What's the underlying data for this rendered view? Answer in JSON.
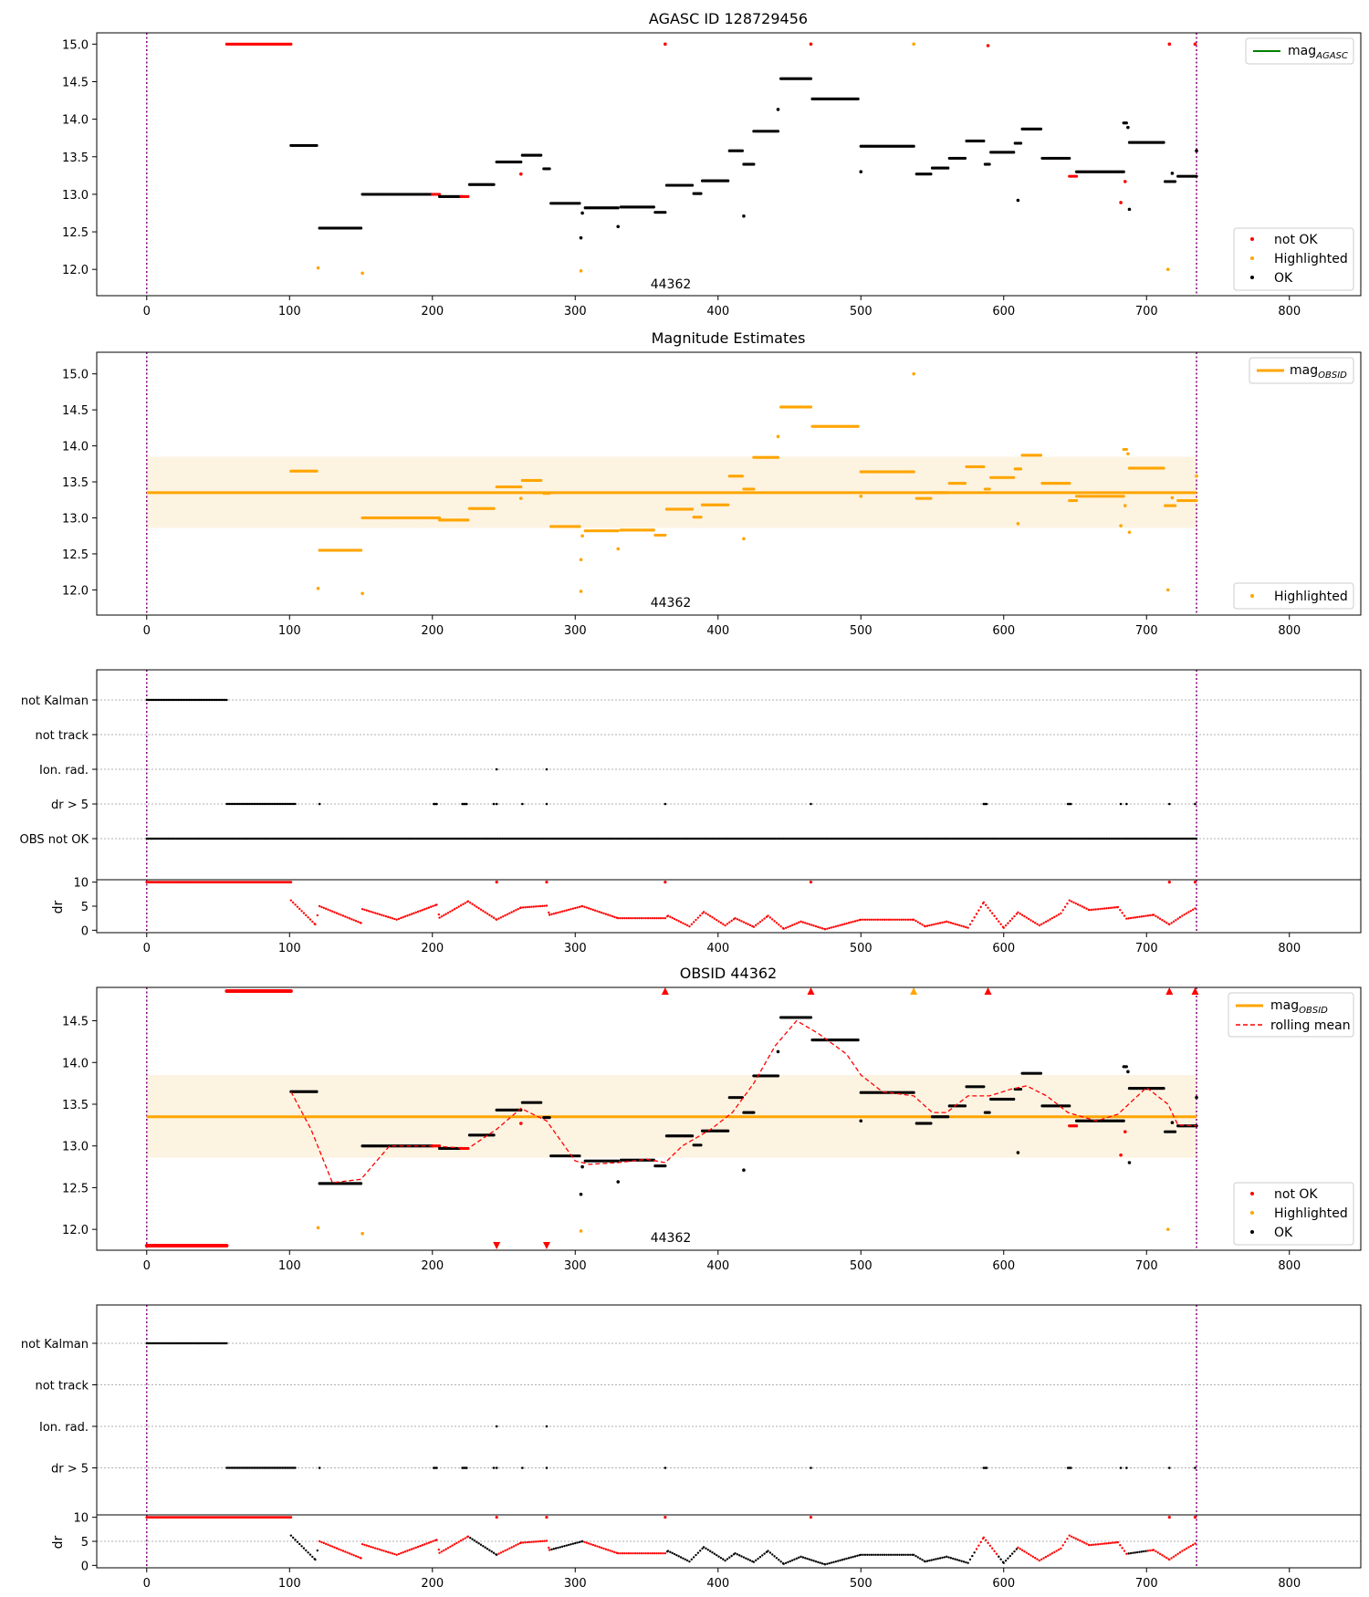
{
  "figure": {
    "obsid_label": "44362",
    "colors": {
      "not_ok": "#ff0000",
      "highlighted": "#ffa500",
      "ok": "#000000",
      "mag_agasc": "#008000",
      "obs_window": "#800080",
      "band": "#fdf3e1",
      "grid": "#b0b0b0"
    }
  },
  "chart_data": [
    {
      "id": "agasc",
      "type": "scatter",
      "title": "AGASC ID 128729456",
      "annotation": "44362",
      "xlim": [
        -35,
        850
      ],
      "ylim": [
        11.65,
        15.15
      ],
      "xticks": [
        0,
        100,
        200,
        300,
        400,
        500,
        600,
        700,
        800
      ],
      "yticks": [
        12.0,
        12.5,
        13.0,
        13.5,
        14.0,
        14.5,
        15.0
      ],
      "obs_window": [
        0,
        735
      ],
      "legend_top": {
        "position": "top-right",
        "entries": [
          {
            "label": "mag",
            "subscript": "AGASC",
            "kind": "line",
            "color": "#008000"
          }
        ]
      },
      "legend_bottom": {
        "position": "lower-right",
        "entries": [
          {
            "label": "not OK",
            "kind": "dot",
            "color": "#ff0000"
          },
          {
            "label": "Highlighted",
            "kind": "dot",
            "color": "#ffa500"
          },
          {
            "label": "OK",
            "kind": "dot",
            "color": "#000000"
          }
        ]
      },
      "segments": [
        {
          "x0": 56,
          "x1": 101,
          "y": 15.0,
          "status": "not_ok"
        },
        {
          "x0": 101,
          "x1": 119,
          "y": 13.65,
          "status": "ok"
        },
        {
          "x0": 121,
          "x1": 150,
          "y": 12.55,
          "status": "ok"
        },
        {
          "x0": 151,
          "x1": 200,
          "y": 13.0,
          "status": "ok"
        },
        {
          "x0": 200,
          "x1": 205,
          "y": 13.0,
          "status": "not_ok"
        },
        {
          "x0": 205,
          "x1": 220,
          "y": 12.97,
          "status": "ok"
        },
        {
          "x0": 220,
          "x1": 225,
          "y": 12.97,
          "status": "not_ok"
        },
        {
          "x0": 226,
          "x1": 243,
          "y": 13.13,
          "status": "ok"
        },
        {
          "x0": 245,
          "x1": 262,
          "y": 13.43,
          "status": "ok"
        },
        {
          "x0": 263,
          "x1": 276,
          "y": 13.52,
          "status": "ok"
        },
        {
          "x0": 278,
          "x1": 282,
          "y": 13.34,
          "status": "ok"
        },
        {
          "x0": 283,
          "x1": 303,
          "y": 12.88,
          "status": "ok"
        },
        {
          "x0": 307,
          "x1": 330,
          "y": 12.82,
          "status": "ok"
        },
        {
          "x0": 332,
          "x1": 355,
          "y": 12.83,
          "status": "ok"
        },
        {
          "x0": 356,
          "x1": 363,
          "y": 12.76,
          "status": "ok"
        },
        {
          "x0": 364,
          "x1": 382,
          "y": 13.12,
          "status": "ok"
        },
        {
          "x0": 383,
          "x1": 388,
          "y": 13.01,
          "status": "ok"
        },
        {
          "x0": 389,
          "x1": 407,
          "y": 13.18,
          "status": "ok"
        },
        {
          "x0": 408,
          "x1": 417,
          "y": 13.58,
          "status": "ok"
        },
        {
          "x0": 418,
          "x1": 425,
          "y": 13.4,
          "status": "ok"
        },
        {
          "x0": 425,
          "x1": 442,
          "y": 13.84,
          "status": "ok"
        },
        {
          "x0": 444,
          "x1": 465,
          "y": 14.54,
          "status": "ok"
        },
        {
          "x0": 466,
          "x1": 498,
          "y": 14.27,
          "status": "ok"
        },
        {
          "x0": 500,
          "x1": 537,
          "y": 13.64,
          "status": "ok"
        },
        {
          "x0": 539,
          "x1": 549,
          "y": 13.27,
          "status": "ok"
        },
        {
          "x0": 550,
          "x1": 561,
          "y": 13.35,
          "status": "ok"
        },
        {
          "x0": 562,
          "x1": 573,
          "y": 13.48,
          "status": "ok"
        },
        {
          "x0": 574,
          "x1": 586,
          "y": 13.71,
          "status": "ok"
        },
        {
          "x0": 587,
          "x1": 590,
          "y": 13.4,
          "status": "ok"
        },
        {
          "x0": 591,
          "x1": 607,
          "y": 13.56,
          "status": "ok"
        },
        {
          "x0": 608,
          "x1": 612,
          "y": 13.68,
          "status": "ok"
        },
        {
          "x0": 613,
          "x1": 626,
          "y": 13.87,
          "status": "ok"
        },
        {
          "x0": 627,
          "x1": 646,
          "y": 13.48,
          "status": "ok"
        },
        {
          "x0": 646,
          "x1": 651,
          "y": 13.24,
          "status": "not_ok"
        },
        {
          "x0": 651,
          "x1": 684,
          "y": 13.3,
          "status": "ok"
        },
        {
          "x0": 684,
          "x1": 686,
          "y": 13.95,
          "status": "ok"
        },
        {
          "x0": 688,
          "x1": 712,
          "y": 13.69,
          "status": "ok"
        },
        {
          "x0": 713,
          "x1": 720,
          "y": 13.17,
          "status": "ok"
        },
        {
          "x0": 722,
          "x1": 735,
          "y": 13.24,
          "status": "ok"
        }
      ],
      "points": [
        {
          "x": 120,
          "y": 12.02,
          "status": "highlighted"
        },
        {
          "x": 151,
          "y": 11.95,
          "status": "highlighted"
        },
        {
          "x": 304,
          "y": 11.98,
          "status": "highlighted"
        },
        {
          "x": 537,
          "y": 15.0,
          "status": "highlighted"
        },
        {
          "x": 715,
          "y": 12.0,
          "status": "highlighted"
        },
        {
          "x": 363,
          "y": 15.0,
          "status": "not_ok"
        },
        {
          "x": 465,
          "y": 15.0,
          "status": "not_ok"
        },
        {
          "x": 589,
          "y": 14.98,
          "status": "not_ok"
        },
        {
          "x": 716,
          "y": 15.0,
          "status": "not_ok"
        },
        {
          "x": 734,
          "y": 15.0,
          "status": "not_ok"
        },
        {
          "x": 262,
          "y": 13.27,
          "status": "not_ok"
        },
        {
          "x": 682,
          "y": 12.89,
          "status": "not_ok"
        },
        {
          "x": 685,
          "y": 13.17,
          "status": "not_ok"
        },
        {
          "x": 304,
          "y": 12.42,
          "status": "ok"
        },
        {
          "x": 305,
          "y": 12.75,
          "status": "ok"
        },
        {
          "x": 330,
          "y": 12.57,
          "status": "ok"
        },
        {
          "x": 418,
          "y": 12.71,
          "status": "ok"
        },
        {
          "x": 442,
          "y": 14.13,
          "status": "ok"
        },
        {
          "x": 500,
          "y": 13.3,
          "status": "ok"
        },
        {
          "x": 610,
          "y": 12.92,
          "status": "ok"
        },
        {
          "x": 687,
          "y": 13.89,
          "status": "ok"
        },
        {
          "x": 688,
          "y": 12.8,
          "status": "ok"
        },
        {
          "x": 718,
          "y": 13.28,
          "status": "ok"
        },
        {
          "x": 735,
          "y": 13.58,
          "status": "ok"
        }
      ]
    },
    {
      "id": "estimates",
      "type": "scatter",
      "title": "Magnitude Estimates",
      "annotation": "44362",
      "xlim": [
        -35,
        850
      ],
      "ylim": [
        11.65,
        15.3
      ],
      "xticks": [
        0,
        100,
        200,
        300,
        400,
        500,
        600,
        700,
        800
      ],
      "yticks": [
        12.0,
        12.5,
        13.0,
        13.5,
        14.0,
        14.5,
        15.0
      ],
      "obs_window": [
        0,
        735
      ],
      "mag_obsid": 13.35,
      "band": [
        12.86,
        13.85
      ],
      "legend_top": {
        "position": "top-right",
        "entries": [
          {
            "label": "mag",
            "subscript": "OBSID",
            "kind": "line",
            "color": "#ffa500"
          }
        ]
      },
      "legend_bottom": {
        "position": "lower-right",
        "entries": [
          {
            "label": "Highlighted",
            "kind": "dot",
            "color": "#ffa500"
          }
        ]
      }
    },
    {
      "id": "flags1",
      "type": "scatter",
      "categories": [
        "not Kalman",
        "not track",
        "Ion. rad.",
        "dr > 5",
        "OBS not OK"
      ],
      "xlim": [
        -35,
        850
      ],
      "xticks": [
        0,
        100,
        200,
        300,
        400,
        500,
        600,
        700,
        800
      ],
      "obs_window": [
        0,
        735
      ],
      "flags": [
        {
          "row": "not Kalman",
          "x0": 0,
          "x1": 56
        },
        {
          "row": "Ion. rad.",
          "x": [
            245,
            280
          ]
        },
        {
          "row": "dr > 5",
          "x0": 56,
          "x1": 104
        },
        {
          "row": "dr > 5",
          "x": [
            121,
            201,
            202,
            203,
            221,
            222,
            223,
            224,
            243,
            245,
            263,
            280,
            363,
            465,
            586,
            587,
            588,
            645,
            646,
            647,
            682,
            686,
            716,
            734
          ]
        },
        {
          "row": "OBS not OK",
          "x0": 0,
          "x1": 735
        }
      ]
    },
    {
      "id": "dr1",
      "type": "scatter",
      "ylabel": "dr",
      "xlim": [
        -35,
        850
      ],
      "ylim": [
        -0.5,
        10.5
      ],
      "yticks": [
        0,
        5,
        10
      ],
      "xticks": [
        0,
        100,
        200,
        300,
        400,
        500,
        600,
        700,
        800
      ],
      "obs_window": [
        0,
        735
      ]
    },
    {
      "id": "obsid",
      "type": "scatter",
      "title": "OBSID 44362",
      "annotation": "44362",
      "xlim": [
        -35,
        850
      ],
      "ylim": [
        11.75,
        14.9
      ],
      "xticks": [
        0,
        100,
        200,
        300,
        400,
        500,
        600,
        700,
        800
      ],
      "yticks": [
        12.0,
        12.5,
        13.0,
        13.5,
        14.0,
        14.5
      ],
      "obs_window": [
        0,
        735
      ],
      "mag_obsid": 13.35,
      "band": [
        12.86,
        13.85
      ],
      "rolling_mean": [
        [
          101,
          13.65
        ],
        [
          115,
          13.2
        ],
        [
          130,
          12.56
        ],
        [
          150,
          12.6
        ],
        [
          170,
          13.0
        ],
        [
          200,
          13.0
        ],
        [
          225,
          12.97
        ],
        [
          245,
          13.2
        ],
        [
          262,
          13.45
        ],
        [
          280,
          13.3
        ],
        [
          300,
          12.82
        ],
        [
          310,
          12.78
        ],
        [
          330,
          12.8
        ],
        [
          350,
          12.84
        ],
        [
          363,
          12.8
        ],
        [
          375,
          13.0
        ],
        [
          395,
          13.2
        ],
        [
          410,
          13.4
        ],
        [
          425,
          13.75
        ],
        [
          440,
          14.2
        ],
        [
          455,
          14.5
        ],
        [
          470,
          14.35
        ],
        [
          490,
          14.1
        ],
        [
          500,
          13.85
        ],
        [
          515,
          13.65
        ],
        [
          537,
          13.6
        ],
        [
          550,
          13.4
        ],
        [
          560,
          13.4
        ],
        [
          575,
          13.6
        ],
        [
          590,
          13.6
        ],
        [
          605,
          13.68
        ],
        [
          616,
          13.72
        ],
        [
          630,
          13.6
        ],
        [
          645,
          13.4
        ],
        [
          665,
          13.3
        ],
        [
          680,
          13.38
        ],
        [
          700,
          13.7
        ],
        [
          715,
          13.5
        ],
        [
          722,
          13.25
        ],
        [
          735,
          13.24
        ]
      ],
      "markers_top": [
        {
          "x0": 56,
          "x1": 101,
          "status": "not_ok"
        },
        {
          "x": 363,
          "status": "not_ok"
        },
        {
          "x": 465,
          "status": "not_ok"
        },
        {
          "x": 537,
          "status": "highlighted"
        },
        {
          "x": 589,
          "status": "not_ok"
        },
        {
          "x": 716,
          "status": "not_ok"
        },
        {
          "x": 734,
          "status": "not_ok"
        }
      ],
      "markers_bottom": [
        {
          "x0": 0,
          "x1": 56,
          "status": "not_ok"
        },
        {
          "x": 245,
          "status": "not_ok"
        },
        {
          "x": 280,
          "status": "not_ok"
        }
      ],
      "legend_top": {
        "position": "top-right",
        "entries": [
          {
            "label": "mag",
            "subscript": "OBSID",
            "kind": "line",
            "color": "#ffa500"
          },
          {
            "label": "rolling mean",
            "kind": "dashed",
            "color": "#ff0000"
          }
        ]
      },
      "legend_bottom": {
        "position": "lower-right",
        "entries": [
          {
            "label": "not OK",
            "kind": "dot",
            "color": "#ff0000"
          },
          {
            "label": "Highlighted",
            "kind": "dot",
            "color": "#ffa500"
          },
          {
            "label": "OK",
            "kind": "dot",
            "color": "#000000"
          }
        ]
      }
    },
    {
      "id": "flags2",
      "type": "scatter",
      "categories": [
        "not Kalman",
        "not track",
        "Ion. rad.",
        "dr > 5"
      ],
      "xlim": [
        -35,
        850
      ],
      "xticks": [
        0,
        100,
        200,
        300,
        400,
        500,
        600,
        700,
        800
      ],
      "obs_window": [
        0,
        735
      ],
      "flags": [
        {
          "row": "not Kalman",
          "x0": 0,
          "x1": 56
        },
        {
          "row": "Ion. rad.",
          "x": [
            245,
            280
          ]
        },
        {
          "row": "dr > 5",
          "x0": 56,
          "x1": 104
        },
        {
          "row": "dr > 5",
          "x": [
            121,
            201,
            202,
            203,
            221,
            222,
            223,
            224,
            243,
            245,
            263,
            280,
            363,
            465,
            586,
            587,
            588,
            645,
            646,
            647,
            682,
            686,
            716,
            734
          ]
        }
      ]
    },
    {
      "id": "dr2",
      "type": "scatter",
      "ylabel": "dr",
      "xlim": [
        -35,
        850
      ],
      "ylim": [
        -0.5,
        10.5
      ],
      "yticks": [
        0,
        5,
        10
      ],
      "xticks": [
        0,
        100,
        200,
        300,
        400,
        500,
        600,
        700,
        800
      ],
      "obs_window": [
        0,
        735
      ],
      "dr_anchors": [
        [
          101,
          6.2
        ],
        [
          118,
          1.2
        ],
        [
          121,
          5.0
        ],
        [
          150,
          1.5
        ],
        [
          151,
          4.4
        ],
        [
          175,
          2.2
        ],
        [
          203,
          5.3
        ],
        [
          205,
          2.6
        ],
        [
          225,
          6.0
        ],
        [
          245,
          2.2
        ],
        [
          262,
          4.7
        ],
        [
          280,
          5.1
        ],
        [
          282,
          3.2
        ],
        [
          305,
          5.0
        ],
        [
          330,
          2.5
        ],
        [
          363,
          2.5
        ],
        [
          365,
          3.0
        ],
        [
          380,
          0.8
        ],
        [
          390,
          3.8
        ],
        [
          405,
          1.0
        ],
        [
          412,
          2.5
        ],
        [
          425,
          0.7
        ],
        [
          435,
          3.0
        ],
        [
          446,
          0.3
        ],
        [
          458,
          1.8
        ],
        [
          475,
          0.2
        ],
        [
          500,
          2.2
        ],
        [
          537,
          2.2
        ],
        [
          545,
          0.8
        ],
        [
          560,
          1.8
        ],
        [
          575,
          0.5
        ],
        [
          586,
          5.8
        ],
        [
          600,
          0.5
        ],
        [
          610,
          3.7
        ],
        [
          625,
          1.0
        ],
        [
          640,
          3.5
        ],
        [
          646,
          6.2
        ],
        [
          660,
          4.2
        ],
        [
          680,
          4.8
        ],
        [
          686,
          2.4
        ],
        [
          705,
          3.2
        ],
        [
          716,
          1.2
        ],
        [
          725,
          3.0
        ],
        [
          735,
          4.7
        ]
      ],
      "dr_not_ok_ranges": [
        [
          121,
          150
        ],
        [
          151,
          225
        ],
        [
          246,
          282
        ],
        [
          306,
          363
        ],
        [
          580,
          595
        ],
        [
          610,
          686
        ],
        [
          700,
          735
        ]
      ]
    }
  ]
}
